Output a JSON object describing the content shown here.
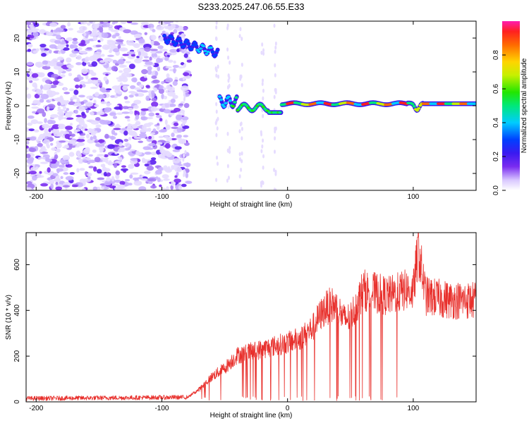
{
  "title": "S233.2025.247.06.55.E33",
  "chart_data": [
    {
      "type": "heatmap",
      "xlabel": "Height of straight line (km)",
      "ylabel": "Frequency (Hz)",
      "xlim": [
        -208,
        150
      ],
      "ylim": [
        -25,
        25
      ],
      "xticks": [
        -200,
        -100,
        0,
        100
      ],
      "yticks": [
        -20,
        -10,
        0,
        10,
        20
      ],
      "colorbar": {
        "label": "Normalized spectral amplitude",
        "range": [
          0,
          1
        ],
        "ticks": [
          0.0,
          0.2,
          0.4,
          0.6,
          0.8
        ]
      },
      "features": [
        {
          "name": "noise region",
          "x_range": [
            -208,
            -82
          ],
          "freq_range": [
            -25,
            25
          ]
        },
        {
          "name": "high-frequency trace",
          "x_range": [
            -98,
            -55
          ],
          "freq_start": 20,
          "freq_end": 15.5
        },
        {
          "name": "main trace",
          "x_range": [
            -54,
            150
          ],
          "freq_approx": [
            0,
            1
          ]
        }
      ]
    },
    {
      "type": "line",
      "xlabel": "Height of straight line (km)",
      "ylabel": "SNR (10 * v/v)",
      "xlim": [
        -208,
        150
      ],
      "ylim": [
        0,
        740
      ],
      "xticks": [
        -200,
        -100,
        0,
        100
      ],
      "yticks": [
        0,
        200,
        400,
        600
      ],
      "series": [
        {
          "name": "SNR",
          "color": "#e8302c",
          "envelope": {
            "x": [
              -208,
              -80,
              -70,
              -60,
              -50,
              -45,
              -40,
              -20,
              0,
              10,
              20,
              25,
              30,
              35,
              40,
              45,
              50,
              55,
              60,
              80,
              95,
              100,
              104,
              110,
              130,
              150
            ],
            "y": [
              15,
              20,
              60,
              120,
              160,
              190,
              220,
              250,
              280,
              300,
              350,
              400,
              440,
              460,
              440,
              390,
              400,
              460,
              530,
              500,
              530,
              520,
              720,
              500,
              480,
              480
            ]
          }
        }
      ]
    }
  ]
}
